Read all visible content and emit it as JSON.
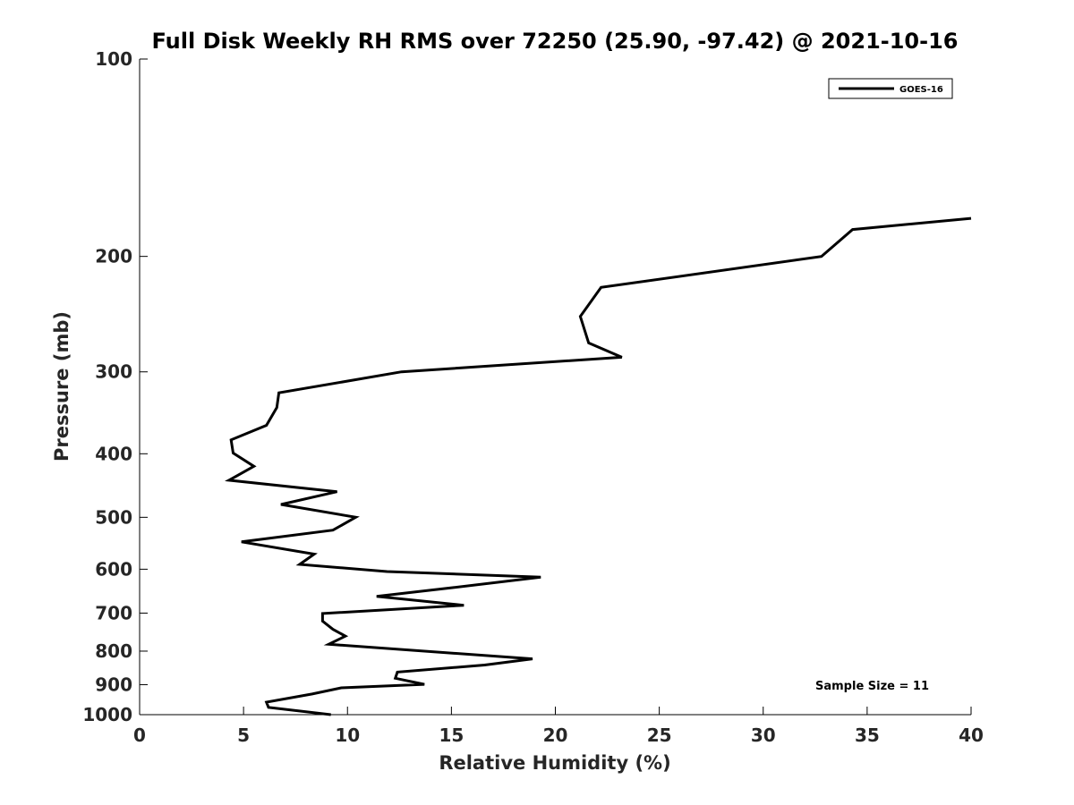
{
  "chart_data": {
    "type": "line",
    "title": "Full Disk Weekly RH RMS over 72250 (25.90, -97.42) @ 2021-10-16",
    "xlabel": "Relative Humidity (%)",
    "ylabel": "Pressure (mb)",
    "xlim": [
      0,
      40
    ],
    "ylim": [
      100,
      1000
    ],
    "y_scale": "log",
    "y_reversed": true,
    "x_ticks": [
      "0",
      "5",
      "10",
      "15",
      "20",
      "25",
      "30",
      "35",
      "40"
    ],
    "y_ticks": [
      "100",
      "200",
      "300",
      "400",
      "500",
      "600",
      "700",
      "800",
      "900",
      "1000"
    ],
    "grid": false,
    "legend": {
      "position": "top-right",
      "entries": [
        "GOES-16"
      ]
    },
    "annotation": "Sample Size = 11",
    "series": [
      {
        "name": "GOES-16",
        "color": "#000000",
        "points": [
          [
            40.0,
            175
          ],
          [
            34.3,
            182
          ],
          [
            32.8,
            200
          ],
          [
            22.2,
            223
          ],
          [
            21.2,
            247
          ],
          [
            21.6,
            271
          ],
          [
            23.2,
            285
          ],
          [
            12.6,
            300
          ],
          [
            6.7,
            323
          ],
          [
            6.6,
            340
          ],
          [
            6.1,
            362
          ],
          [
            4.4,
            381
          ],
          [
            4.5,
            399
          ],
          [
            5.5,
            418
          ],
          [
            4.3,
            439
          ],
          [
            9.5,
            457
          ],
          [
            6.8,
            478
          ],
          [
            10.4,
            500
          ],
          [
            9.3,
            523
          ],
          [
            4.9,
            545
          ],
          [
            8.4,
            569
          ],
          [
            7.7,
            590
          ],
          [
            11.9,
            605
          ],
          [
            19.3,
            617
          ],
          [
            15.1,
            640
          ],
          [
            11.4,
            660
          ],
          [
            15.6,
            681
          ],
          [
            8.8,
            701
          ],
          [
            8.8,
            720
          ],
          [
            9.3,
            741
          ],
          [
            9.9,
            759
          ],
          [
            9.1,
            781
          ],
          [
            18.9,
            822
          ],
          [
            16.6,
            840
          ],
          [
            12.4,
            861
          ],
          [
            12.3,
            880
          ],
          [
            13.7,
            899
          ],
          [
            9.7,
            910
          ],
          [
            8.3,
            930
          ],
          [
            6.1,
            957
          ],
          [
            6.2,
            975
          ],
          [
            9.2,
            1000
          ]
        ]
      }
    ]
  }
}
